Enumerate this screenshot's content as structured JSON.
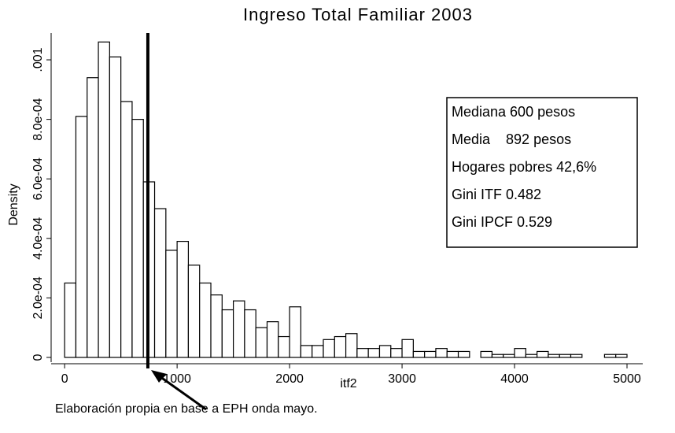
{
  "chart_data": {
    "type": "histogram",
    "title": "Ingreso Total Familiar 2003",
    "x_label": "itf2",
    "y_label": "Density",
    "bins": [
      0,
      100,
      200,
      300,
      400,
      500,
      600,
      700,
      800,
      900,
      1000,
      1100,
      1200,
      1300,
      1400,
      1500,
      1600,
      1700,
      1800,
      1900,
      2000,
      2100,
      2200,
      2300,
      2400,
      2500,
      2600,
      2700,
      2800,
      2900,
      3000,
      3100,
      3200,
      3300,
      3400,
      3500,
      3600,
      3700,
      3800,
      3900,
      4000,
      4100,
      4200,
      4300,
      4400,
      4500,
      4600,
      4700,
      4800,
      4900,
      5000
    ],
    "values": [
      0.00025,
      0.00081,
      0.00094,
      0.00106,
      0.00101,
      0.00086,
      0.0008,
      0.00059,
      0.0005,
      0.00036,
      0.00039,
      0.00031,
      0.00025,
      0.00021,
      0.00016,
      0.00019,
      0.00016,
      0.0001,
      0.00012,
      7e-05,
      0.00017,
      4e-05,
      4e-05,
      6e-05,
      7e-05,
      8e-05,
      3e-05,
      3e-05,
      4e-05,
      3e-05,
      6e-05,
      2e-05,
      2e-05,
      3e-05,
      2e-05,
      2e-05,
      0,
      2e-05,
      1e-05,
      1e-05,
      3e-05,
      1e-05,
      2e-05,
      1e-05,
      1e-05,
      1e-05,
      0,
      0,
      1e-05,
      1e-05
    ],
    "color": "#ffffff",
    "xlim": [
      -120,
      5000
    ],
    "ylim": [
      0,
      0.00109
    ],
    "xticks": [
      0,
      1000,
      2000,
      3000,
      4000,
      5000
    ],
    "yticks": [
      0,
      {
        "value": 0.0002,
        "label": "2.0e-04"
      },
      {
        "value": 0.0004,
        "label": "4.0e-04"
      },
      {
        "value": 0.0006,
        "label": "6.0e-04"
      },
      {
        "value": 0.0008,
        "label": "8.0e-04"
      },
      {
        "value": 0.001,
        "label": ".001"
      }
    ],
    "reference_line": 740,
    "annotation_lines": [
      "Mediana 600 pesos",
      "Media    892 pesos",
      "Hogares pobres 42,6%",
      "Gini ITF 0.482",
      "Gini IPCF 0.529"
    ],
    "note": "Elaboración propia en base a EPH onda mayo."
  }
}
